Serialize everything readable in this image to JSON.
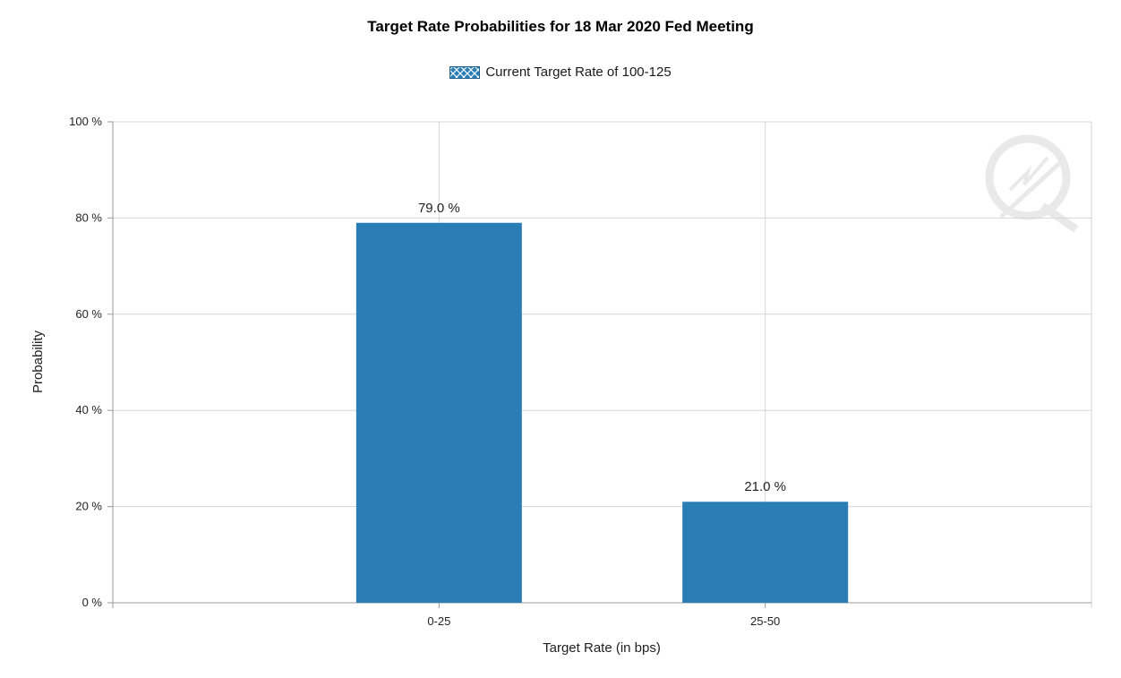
{
  "chart_data": {
    "type": "bar",
    "title": "Target Rate Probabilities for 18 Mar 2020 Fed Meeting",
    "legend": {
      "label": "Current Target Rate of 100-125",
      "position": "top-center"
    },
    "categories": [
      "0-25",
      "25-50"
    ],
    "series": [
      {
        "name": "Current Target Rate of 100-125",
        "values": [
          79.0,
          21.0
        ]
      }
    ],
    "data_labels": [
      "79.0 %",
      "21.0 %"
    ],
    "xlabel": "Target Rate (in bps)",
    "ylabel": "Probability",
    "ylim": [
      0,
      100
    ],
    "yticks": [
      0,
      20,
      40,
      60,
      80,
      100
    ],
    "ytick_labels": [
      "0 %",
      "20 %",
      "40 %",
      "60 %",
      "80 %",
      "100 %"
    ],
    "grid": true,
    "colors": {
      "bar": "#2a7db5",
      "grid": "#d6d6d6",
      "axis": "#9a9a9a"
    }
  }
}
